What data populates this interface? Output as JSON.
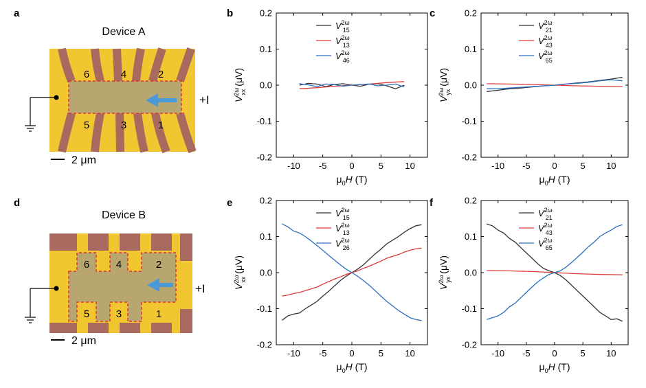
{
  "panel_letters": {
    "a": "a",
    "b": "b",
    "c": "c",
    "d": "d",
    "e": "e",
    "f": "f"
  },
  "devices": [
    {
      "title": "Device A",
      "scale_label": "2 μm",
      "current_label": "+I",
      "pads_top": [
        "6",
        "4",
        "2"
      ],
      "pads_bottom": [
        "5",
        "3",
        "1"
      ]
    },
    {
      "title": "Device B",
      "scale_label": "2 μm",
      "current_label": "+I",
      "pads_top": [
        "6",
        "4",
        "2"
      ],
      "pads_bottom": [
        "5",
        "3",
        "1"
      ]
    }
  ],
  "colors": {
    "black": "#333333",
    "red": "#e03a3a",
    "blue": "#2a6ebd",
    "gold": "#f2c630",
    "channel": "#b8a670",
    "electrode": "#a86a5e",
    "arrow": "#4a9ad8",
    "dash": "#e03030"
  },
  "chart_data": [
    {
      "id": "b",
      "type": "line",
      "xlabel": "μ0H (T)",
      "ylabel": "V_xx^2ω (μV)",
      "xlim": [
        -13,
        13
      ],
      "ylim": [
        -0.2,
        0.2
      ],
      "xticks": [
        -10,
        -5,
        0,
        5,
        10
      ],
      "yticks": [
        -0.2,
        -0.1,
        0.0,
        0.1,
        0.2
      ],
      "xtick_labels": [
        "-10",
        "-5",
        "0",
        "5",
        "10"
      ],
      "ytick_labels": [
        "-0.2",
        "-0.1",
        "0.0",
        "0.1",
        "0.2"
      ],
      "legend_position": "top-center",
      "series": [
        {
          "label_main": "V",
          "label_sup": "2ω",
          "label_sub": "15",
          "color": "#333333",
          "x": [
            -9,
            -7.5,
            -6,
            -4.5,
            -3,
            -1.5,
            0,
            1.5,
            3,
            4.5,
            6,
            7.5,
            9
          ],
          "y": [
            0.0,
            0.005,
            0.003,
            -0.004,
            0.002,
            0.004,
            0.0,
            -0.003,
            0.003,
            0.004,
            -0.002,
            -0.01,
            0.0
          ]
        },
        {
          "label_main": "V",
          "label_sup": "2ω",
          "label_sub": "13",
          "color": "#e03a3a",
          "x": [
            -9,
            -6,
            -3,
            0,
            3,
            6,
            9
          ],
          "y": [
            -0.01,
            -0.007,
            -0.003,
            0.0,
            0.003,
            0.007,
            0.01
          ]
        },
        {
          "label_main": "V",
          "label_sup": "2ω",
          "label_sub": "46",
          "color": "#2a6ebd",
          "x": [
            -9,
            -7.5,
            -6,
            -4.5,
            -3,
            -1.5,
            0,
            1.5,
            3,
            4.5,
            6,
            7.5,
            9
          ],
          "y": [
            0.004,
            0.001,
            -0.004,
            0.003,
            0.002,
            -0.003,
            0.0,
            0.002,
            0.003,
            -0.002,
            0.0,
            0.003,
            -0.005
          ]
        }
      ]
    },
    {
      "id": "c",
      "type": "line",
      "xlabel": "μ0H (T)",
      "ylabel": "V_yx^2ω (μV)",
      "xlim": [
        -13,
        13
      ],
      "ylim": [
        -0.2,
        0.2
      ],
      "xticks": [
        -10,
        -5,
        0,
        5,
        10
      ],
      "yticks": [
        -0.2,
        -0.1,
        0.0,
        0.1,
        0.2
      ],
      "xtick_labels": [
        "-10",
        "-5",
        "0",
        "5",
        "10"
      ],
      "ytick_labels": [
        "-0.2",
        "-0.1",
        "0.0",
        "0.1",
        "0.2"
      ],
      "legend_position": "top-center",
      "series": [
        {
          "label_main": "V",
          "label_sup": "2ω",
          "label_sub": "21",
          "color": "#333333",
          "x": [
            -12,
            -10,
            -8,
            -6,
            -4,
            -2,
            0,
            2,
            4,
            6,
            8,
            10,
            12
          ],
          "y": [
            -0.018,
            -0.014,
            -0.01,
            -0.008,
            -0.005,
            -0.002,
            0.0,
            0.003,
            0.006,
            0.009,
            0.013,
            0.017,
            0.022
          ]
        },
        {
          "label_main": "V",
          "label_sup": "2ω",
          "label_sub": "43",
          "color": "#e03a3a",
          "x": [
            -12,
            -8,
            -4,
            0,
            4,
            8,
            12
          ],
          "y": [
            0.004,
            0.003,
            0.002,
            0.0,
            -0.002,
            -0.003,
            -0.004
          ]
        },
        {
          "label_main": "V",
          "label_sup": "2ω",
          "label_sub": "65",
          "color": "#2a6ebd",
          "x": [
            -12,
            -10,
            -8,
            -6,
            -4,
            -2,
            0,
            2,
            4,
            6,
            8,
            10,
            12
          ],
          "y": [
            -0.01,
            -0.01,
            -0.008,
            -0.006,
            -0.004,
            -0.002,
            0.0,
            0.003,
            0.005,
            0.008,
            0.012,
            0.015,
            0.012
          ]
        }
      ]
    },
    {
      "id": "e",
      "type": "line",
      "xlabel": "μ0H (T)",
      "ylabel": "V_xx^2ω (μV)",
      "xlim": [
        -13,
        13
      ],
      "ylim": [
        -0.2,
        0.2
      ],
      "xticks": [
        -10,
        -5,
        0,
        5,
        10
      ],
      "yticks": [
        -0.2,
        -0.1,
        0.0,
        0.1,
        0.2
      ],
      "xtick_labels": [
        "-10",
        "-5",
        "0",
        "5",
        "10"
      ],
      "ytick_labels": [
        "-0.2",
        "-0.1",
        "0.0",
        "0.1",
        "0.2"
      ],
      "legend_position": "top-center",
      "series": [
        {
          "label_main": "V",
          "label_sup": "2ω",
          "label_sub": "15",
          "color": "#333333",
          "x": [
            -12,
            -11,
            -10,
            -9,
            -8,
            -7,
            -6,
            -5,
            -4,
            -3,
            -2,
            -1,
            0,
            1,
            2,
            3,
            4,
            5,
            6,
            7,
            8,
            9,
            10,
            11,
            12
          ],
          "y": [
            -0.132,
            -0.12,
            -0.115,
            -0.112,
            -0.1,
            -0.09,
            -0.08,
            -0.065,
            -0.052,
            -0.037,
            -0.022,
            -0.01,
            0.0,
            0.01,
            0.022,
            0.037,
            0.052,
            0.065,
            0.08,
            0.09,
            0.1,
            0.112,
            0.122,
            0.13,
            0.133
          ]
        },
        {
          "label_main": "V",
          "label_sup": "2ω",
          "label_sub": "13",
          "color": "#e03a3a",
          "x": [
            -12,
            -11,
            -10,
            -9,
            -8,
            -7,
            -6,
            -5,
            -4,
            -3,
            -2,
            -1,
            0,
            1,
            2,
            3,
            4,
            5,
            6,
            7,
            8,
            9,
            10,
            11,
            12
          ],
          "y": [
            -0.065,
            -0.062,
            -0.058,
            -0.055,
            -0.05,
            -0.045,
            -0.04,
            -0.032,
            -0.025,
            -0.018,
            -0.012,
            -0.005,
            0.0,
            0.005,
            0.012,
            0.018,
            0.025,
            0.032,
            0.04,
            0.045,
            0.05,
            0.057,
            0.062,
            0.066,
            0.068
          ]
        },
        {
          "label_main": "V",
          "label_sup": "2ω",
          "label_sub": "26",
          "color": "#2a6ebd",
          "x": [
            -12,
            -11,
            -10,
            -9,
            -8,
            -7,
            -6,
            -5,
            -4,
            -3,
            -2,
            -1,
            0,
            1,
            2,
            3,
            4,
            5,
            6,
            7,
            8,
            9,
            10,
            11,
            12
          ],
          "y": [
            0.135,
            0.127,
            0.115,
            0.11,
            0.1,
            0.088,
            0.075,
            0.062,
            0.048,
            0.035,
            0.022,
            0.01,
            0.0,
            -0.01,
            -0.022,
            -0.035,
            -0.05,
            -0.065,
            -0.08,
            -0.092,
            -0.105,
            -0.115,
            -0.125,
            -0.13,
            -0.133
          ]
        }
      ]
    },
    {
      "id": "f",
      "type": "line",
      "xlabel": "μ0H (T)",
      "ylabel": "V_yx^2ω (μV)",
      "xlim": [
        -13,
        13
      ],
      "ylim": [
        -0.2,
        0.2
      ],
      "xticks": [
        -10,
        -5,
        0,
        5,
        10
      ],
      "yticks": [
        -0.2,
        -0.1,
        0.0,
        0.1,
        0.2
      ],
      "xtick_labels": [
        "-10",
        "-5",
        "0",
        "5",
        "10"
      ],
      "ytick_labels": [
        "-0.2",
        "-0.1",
        "0.0",
        "0.1",
        "0.2"
      ],
      "legend_position": "top-center",
      "series": [
        {
          "label_main": "V",
          "label_sup": "2ω",
          "label_sub": "21",
          "color": "#333333",
          "x": [
            -12,
            -11,
            -10,
            -9,
            -8,
            -7,
            -6,
            -5,
            -4,
            -3,
            -2,
            -1,
            0,
            1,
            2,
            3,
            4,
            5,
            6,
            7,
            8,
            9,
            10,
            11,
            12
          ],
          "y": [
            0.135,
            0.13,
            0.118,
            0.11,
            0.095,
            0.085,
            0.07,
            0.055,
            0.04,
            0.025,
            0.012,
            0.005,
            0.0,
            -0.008,
            -0.02,
            -0.035,
            -0.05,
            -0.065,
            -0.08,
            -0.095,
            -0.11,
            -0.12,
            -0.13,
            -0.128,
            -0.135
          ]
        },
        {
          "label_main": "V",
          "label_sup": "2ω",
          "label_sub": "43",
          "color": "#e03a3a",
          "x": [
            -12,
            -8,
            -4,
            0,
            4,
            8,
            12
          ],
          "y": [
            0.006,
            0.005,
            0.003,
            0.0,
            -0.003,
            -0.005,
            -0.006
          ]
        },
        {
          "label_main": "V",
          "label_sup": "2ω",
          "label_sub": "65",
          "color": "#2a6ebd",
          "x": [
            -12,
            -11,
            -10,
            -9,
            -8,
            -7,
            -6,
            -5,
            -4,
            -3,
            -2,
            -1,
            0,
            1,
            2,
            3,
            4,
            5,
            6,
            7,
            8,
            9,
            10,
            11,
            12
          ],
          "y": [
            -0.13,
            -0.125,
            -0.12,
            -0.11,
            -0.095,
            -0.085,
            -0.07,
            -0.055,
            -0.04,
            -0.026,
            -0.015,
            -0.005,
            0.0,
            0.005,
            0.015,
            0.028,
            0.042,
            0.057,
            0.072,
            0.085,
            0.1,
            0.11,
            0.118,
            0.128,
            0.133
          ]
        }
      ]
    }
  ]
}
